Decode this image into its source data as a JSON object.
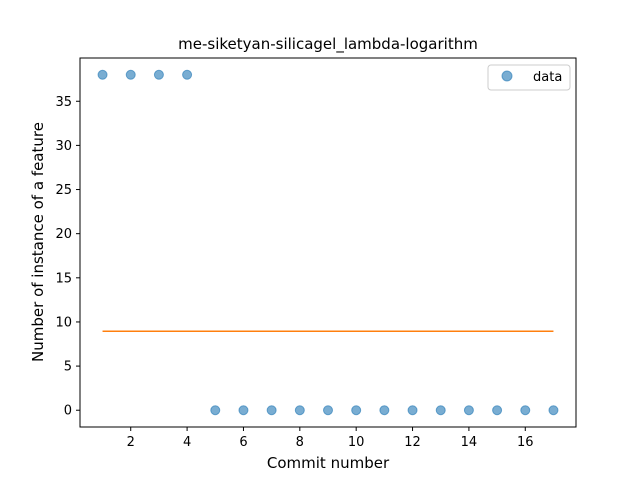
{
  "chart_data": {
    "type": "scatter",
    "title": "me-siketyan-silicagel_lambda-logarithm",
    "xlabel": "Commit number",
    "ylabel": "Number of instance of a feature",
    "xlim": [
      0.2,
      17.8
    ],
    "ylim": [
      -1.9,
      39.9
    ],
    "xticks": [
      2,
      4,
      6,
      8,
      10,
      12,
      14,
      16
    ],
    "yticks": [
      0,
      5,
      10,
      15,
      20,
      25,
      30,
      35
    ],
    "series": [
      {
        "name": "data",
        "kind": "scatter",
        "color": "#1f77b4",
        "x": [
          1,
          2,
          3,
          4,
          5,
          6,
          7,
          8,
          9,
          10,
          11,
          12,
          13,
          14,
          15,
          16,
          17
        ],
        "y": [
          38,
          38,
          38,
          38,
          0,
          0,
          0,
          0,
          0,
          0,
          0,
          0,
          0,
          0,
          0,
          0,
          0
        ]
      },
      {
        "name": "fit",
        "kind": "line",
        "color": "#ff7f0e",
        "x": [
          1,
          17
        ],
        "y": [
          8.94,
          8.94
        ]
      }
    ],
    "legend": {
      "position": "top-right",
      "entries": [
        "data"
      ]
    }
  }
}
